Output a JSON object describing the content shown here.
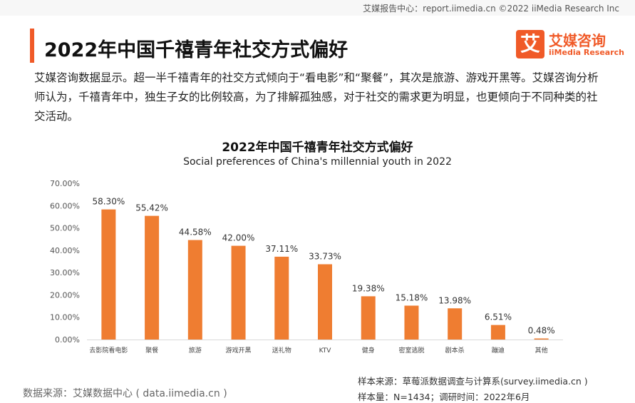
{
  "topbar": {
    "text": "艾媒报告中心：report.iimedia.cn   ©2022  iiMedia Research Inc"
  },
  "header": {
    "title": "2022年中国千禧青年社交方式偏好"
  },
  "logo": {
    "mark": "艾",
    "name_cn": "艾媒咨询",
    "name_en": "iiMedia Research"
  },
  "summary": "艾媒咨询数据显示。超一半千禧青年的社交方式倾向于“看电影”和“聚餐”，其次是旅游、游戏开黑等。艾媒咨询分析师认为，千禧青年中，独生子女的比例较高，为了排解孤独感，对于社交的需求更为明显，也更倾向于不同种类的社交活动。",
  "footer": {
    "source_left": "数据来源：艾媒数据中心 ( data.iimedia.cn )",
    "sample_source": "样本来源：草莓派数据调查与计算系(survey.iimedia.cn )",
    "sample_size": "样本量：N=1434；调研时间：2022年6月"
  },
  "colors": {
    "accent": "#f05a28",
    "bar": "#ef7d31"
  },
  "chart_data": {
    "type": "bar",
    "title": "2022年中国千禧青年社交方式偏好",
    "subtitle": "Social preferences of China's millennial youth in 2022",
    "xlabel": "",
    "ylabel": "",
    "ylim": [
      0,
      70
    ],
    "yticks": [
      "0.00%",
      "10.00%",
      "20.00%",
      "30.00%",
      "40.00%",
      "50.00%",
      "60.00%",
      "70.00%"
    ],
    "categories": [
      "去影院看电影",
      "聚餐",
      "旅游",
      "游戏开黑",
      "送礼物",
      "KTV",
      "健身",
      "密室逃脱",
      "剧本杀",
      "蹦迪",
      "其他"
    ],
    "values": [
      58.3,
      55.42,
      44.58,
      42.0,
      37.11,
      33.73,
      19.38,
      15.18,
      13.98,
      6.51,
      0.48
    ],
    "labels": [
      "58.30%",
      "55.42%",
      "44.58%",
      "42.00%",
      "37.11%",
      "33.73%",
      "19.38%",
      "15.18%",
      "13.98%",
      "6.51%",
      "0.48%"
    ],
    "grid": false,
    "legend": "none"
  }
}
